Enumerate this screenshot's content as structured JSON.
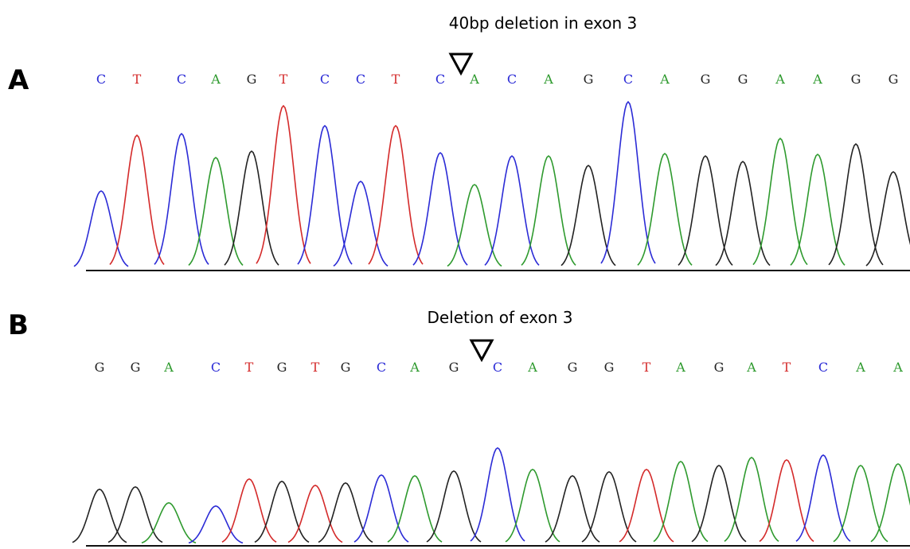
{
  "panels": [
    {
      "label": "A",
      "title": "40bp deletion in exon 3",
      "bases": [
        "C",
        "T",
        "C",
        "A",
        "G",
        "T",
        "C",
        "C",
        "T",
        "C",
        "A",
        "C",
        "A",
        "G",
        "C",
        "A",
        "G",
        "G",
        "A",
        "A",
        "G",
        "G"
      ]
    },
    {
      "label": "B",
      "title": "Deletion of exon 3",
      "bases": [
        "G",
        "G",
        "A",
        "C",
        "T",
        "G",
        "T",
        "G",
        "C",
        "A",
        "G",
        "C",
        "A",
        "G",
        "G",
        "T",
        "A",
        "G",
        "A",
        "T",
        "C",
        "A",
        "A"
      ]
    }
  ]
}
